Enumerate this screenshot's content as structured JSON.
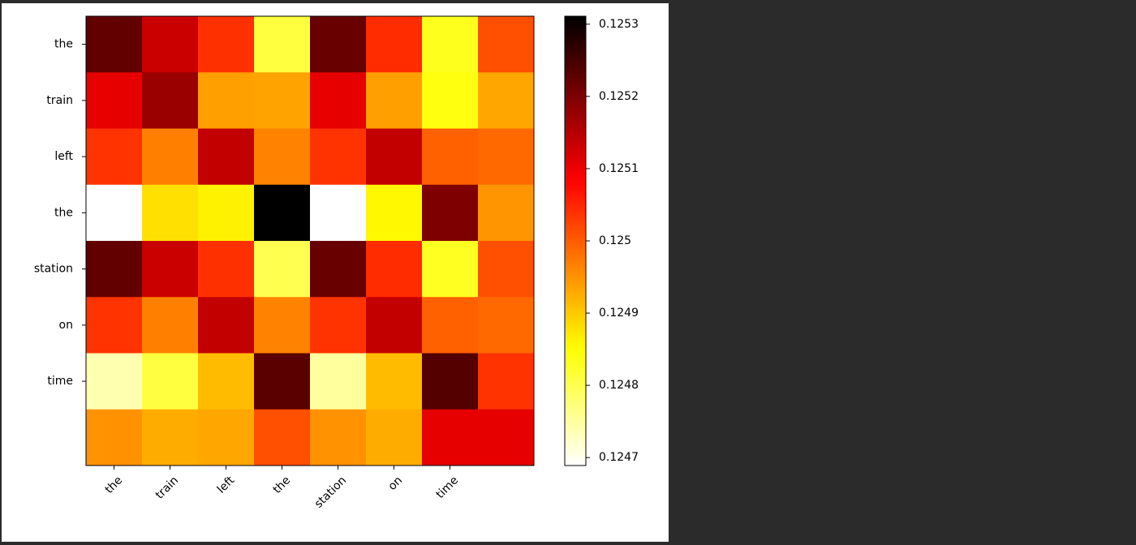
{
  "chart_data": {
    "type": "heatmap",
    "colormap": "hot_r",
    "x_categories": [
      "the",
      "train",
      "left",
      "the",
      "station",
      "on",
      "time",
      null
    ],
    "y_categories": [
      "the",
      "train",
      "left",
      "the",
      "station",
      "on",
      "time",
      null
    ],
    "values": [
      [
        0.125224,
        0.125131,
        0.12504,
        0.12481,
        0.125218,
        0.125044,
        0.124832,
        0.125012
      ],
      [
        0.125106,
        0.125174,
        0.124938,
        0.124935,
        0.125106,
        0.124938,
        0.124841,
        0.124932
      ],
      [
        0.125037,
        0.124967,
        0.125137,
        0.124964,
        0.125037,
        0.125137,
        0.124996,
        0.124988
      ],
      [
        0.124689,
        0.124879,
        0.124863,
        0.125311,
        0.124689,
        0.124857,
        0.125199,
        0.124948
      ],
      [
        0.125224,
        0.125131,
        0.12504,
        0.1248,
        0.125218,
        0.125044,
        0.12483,
        0.125012
      ],
      [
        0.125037,
        0.124967,
        0.125137,
        0.124964,
        0.125037,
        0.125137,
        0.124996,
        0.124988
      ],
      [
        0.124739,
        0.12481,
        0.124913,
        0.12523,
        0.124751,
        0.124913,
        0.125236,
        0.125037
      ],
      [
        0.12495,
        0.124927,
        0.124932,
        0.125012,
        0.12495,
        0.124927,
        0.125106,
        0.125106
      ]
    ],
    "clim": [
      0.124689,
      0.125311
    ],
    "cticks": [
      0.1247,
      0.1248,
      0.1249,
      0.125,
      0.1251,
      0.1252,
      0.1253
    ]
  }
}
